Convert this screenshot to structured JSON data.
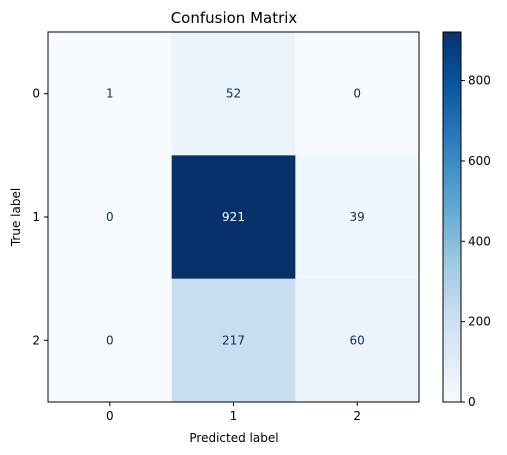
{
  "chart_data": {
    "type": "heatmap",
    "title": "Confusion Matrix",
    "xlabel": "Predicted label",
    "ylabel": "True label",
    "x_categories": [
      "0",
      "1",
      "2"
    ],
    "y_categories": [
      "0",
      "1",
      "2"
    ],
    "values": [
      [
        1,
        52,
        0
      ],
      [
        0,
        921,
        39
      ],
      [
        0,
        217,
        60
      ]
    ],
    "colormap": "Blues",
    "colorbar": {
      "range": [
        0,
        921
      ],
      "ticks": [
        0,
        200,
        400,
        600,
        800
      ],
      "tick_labels": [
        "0",
        "200",
        "400",
        "600",
        "800"
      ]
    },
    "grid": false
  }
}
